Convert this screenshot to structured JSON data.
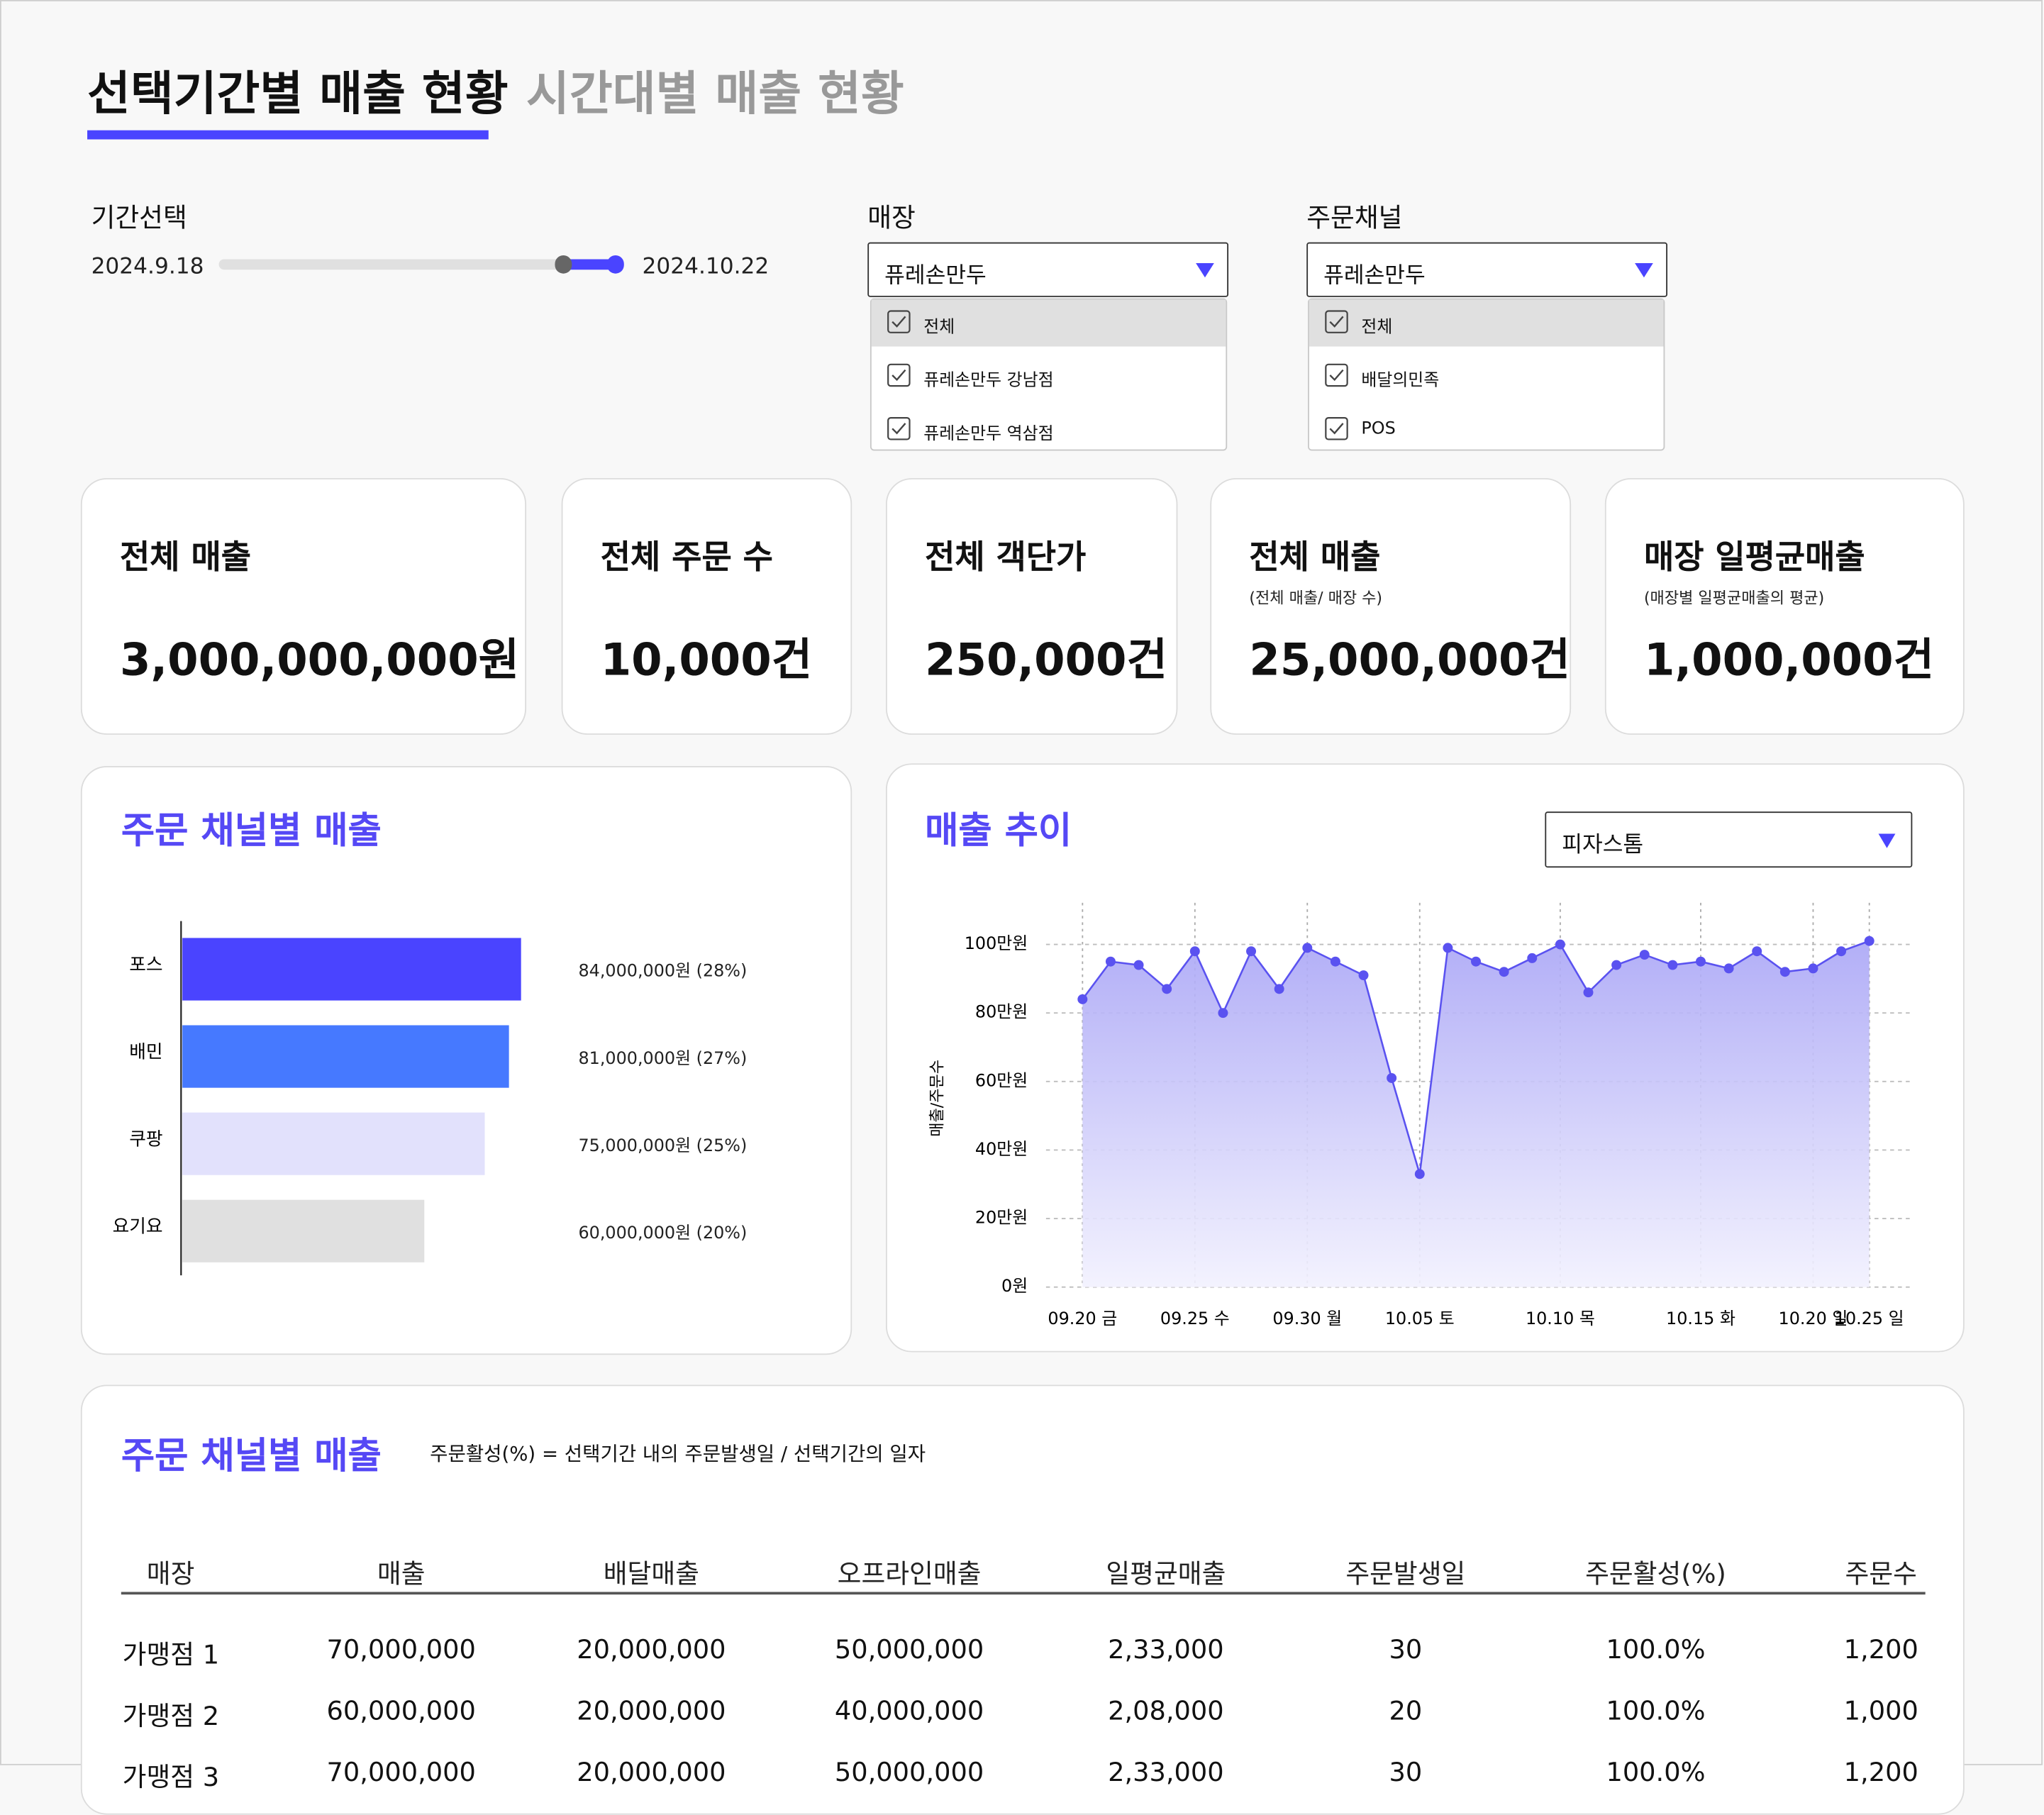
{
  "tabs": [
    "선택기간별 매출 현황",
    "시간대별 매출 현황"
  ],
  "filters": {
    "period": {
      "label": "기간선택",
      "start": "2024.9.18",
      "end": "2024.10.22"
    },
    "store": {
      "label": "매장",
      "selected": "퓨레손만두",
      "options": [
        "전체",
        "퓨레손만두 강남점",
        "퓨레손만두 역삼점"
      ]
    },
    "channel": {
      "label": "주문채널",
      "selected": "퓨레손만두",
      "options": [
        "전체",
        "배달의민족",
        "POS"
      ]
    }
  },
  "kpis": [
    {
      "title": "전체 매출",
      "value": "3,000,000,000원"
    },
    {
      "title": "전체 주문 수",
      "value": "10,000건"
    },
    {
      "title": "전체 객단가",
      "value": "250,000건"
    },
    {
      "title": "전체 매출",
      "subtitle": "(전체 매출/ 매장 수)",
      "value": "25,000,000건"
    },
    {
      "title": "매장 일평균매출",
      "subtitle": "(매장별 일평균매출의 평균)",
      "value": "1,000,000건"
    }
  ],
  "chart_data": [
    {
      "type": "bar",
      "title": "주문 채널별 매출",
      "categories": [
        "포스",
        "배민",
        "쿠팡",
        "요기요"
      ],
      "values": [
        84000000,
        81000000,
        75000000,
        60000000
      ],
      "value_labels": [
        "84,000,000원 (28%)",
        "81,000,000원 (27%)",
        "75,000,000원 (25%)",
        "60,000,000원 (20%)"
      ],
      "colors": [
        "#4a44ff",
        "#4679ff",
        "#e2e1fc",
        "#e0e0e0"
      ]
    },
    {
      "type": "line",
      "title": "매출 추이",
      "dropdown": "피자스톰",
      "ylabel": "매출/주문수",
      "color": "#5a52f0",
      "grid": true,
      "categories": [
        "09.20 금",
        null,
        null,
        null,
        "09.25 수",
        null,
        null,
        null,
        "09.30 월",
        null,
        null,
        null,
        "10.05 토",
        null,
        null,
        null,
        null,
        "10.10 목",
        null,
        null,
        null,
        null,
        "10.15 화",
        null,
        null,
        null,
        "10.20 일",
        null,
        "10.25 일"
      ],
      "values": [
        840000,
        950000,
        940000,
        870000,
        980000,
        800000,
        980000,
        870000,
        990000,
        950000,
        910000,
        610000,
        330000,
        990000,
        950000,
        920000,
        960000,
        1000000,
        860000,
        940000,
        970000,
        940000,
        950000,
        930000,
        980000,
        920000,
        930000,
        980000,
        1010000
      ],
      "ylim": [
        0,
        1120000
      ],
      "yticks": [
        {
          "value": 0,
          "label": "0원"
        },
        {
          "value": 200000,
          "label": "20만원"
        },
        {
          "value": 400000,
          "label": "40만원"
        },
        {
          "value": 600000,
          "label": "60만원"
        },
        {
          "value": 800000,
          "label": "80만원"
        },
        {
          "value": 1000000,
          "label": "100만원"
        }
      ]
    }
  ],
  "table": {
    "title": "주문 채널별 매출",
    "note": "주문활성(%) = 선택기간 내의 주문발생일 / 선택기간의 일자",
    "columns": [
      "매장",
      "매출",
      "배달매출",
      "오프라인매출",
      "일평균매출",
      "주문발생일",
      "주문활성(%)",
      "주문수"
    ],
    "rows": [
      [
        "가맹점 1",
        "70,000,000",
        "20,000,000",
        "50,000,000",
        "2,33,000",
        "30",
        "100.0%",
        "1,200"
      ],
      [
        "가맹점 2",
        "60,000,000",
        "20,000,000",
        "40,000,000",
        "2,08,000",
        "20",
        "100.0%",
        "1,000"
      ],
      [
        "가맹점 3",
        "70,000,000",
        "20,000,000",
        "50,000,000",
        "2,33,000",
        "30",
        "100.0%",
        "1,200"
      ]
    ]
  }
}
